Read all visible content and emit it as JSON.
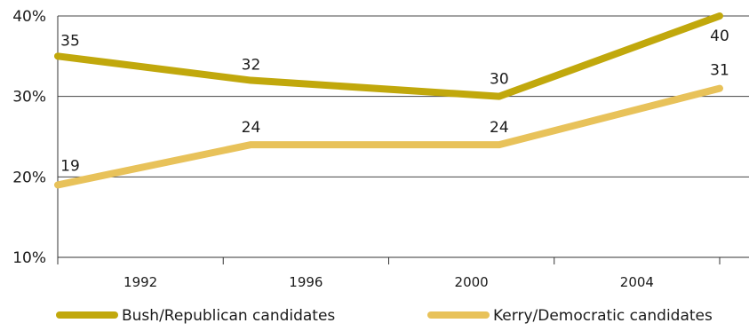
{
  "chart_data": {
    "type": "line",
    "categories": [
      "1992",
      "1996",
      "2000",
      "2004"
    ],
    "y_ticks": [
      "10%",
      "20%",
      "30%",
      "40%"
    ],
    "ylim": [
      10,
      40
    ],
    "grid": true,
    "legend_position": "bottom",
    "series": [
      {
        "name": "Bush/Republican candidates",
        "color": "#c1a80c",
        "x": [
          1990,
          1994.67,
          2000.67,
          2006
        ],
        "values": [
          35,
          32,
          30,
          40
        ],
        "labels": [
          "35",
          "32",
          "30",
          "40"
        ]
      },
      {
        "name": "Kerry/Democratic candidates",
        "color": "#e8c25a",
        "x": [
          1990,
          1994.67,
          2000.67,
          2006
        ],
        "values": [
          19,
          24,
          24,
          31
        ],
        "labels": [
          "19",
          "24",
          "24",
          "31"
        ]
      }
    ]
  }
}
